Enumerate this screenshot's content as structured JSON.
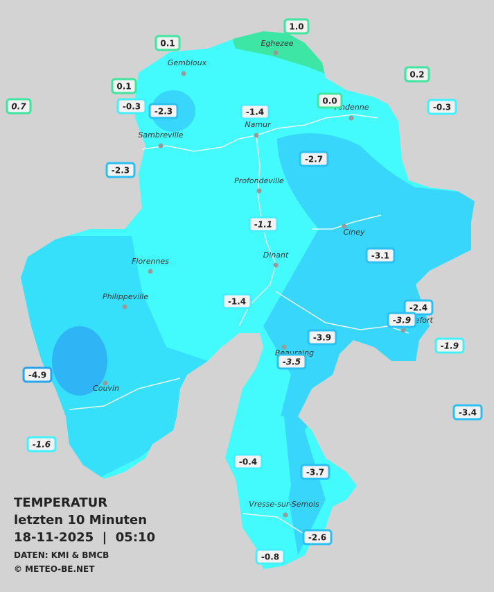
{
  "legend": {
    "title": "TEMPERATUR",
    "period": "letzten 10 Minuten",
    "datetime": "18-11-2025  |  05:10",
    "source": "DATEN: KMI & BMCB",
    "copyright": "© METEO-BE.NET"
  },
  "cities": [
    "Eghezee",
    "Gembloux",
    "Andenne",
    "Namur",
    "Sambreville",
    "Profondeville",
    "Ciney",
    "Dinant",
    "Florennes",
    "Philippeville",
    "Beauraing",
    "Rochefort",
    "Couvin",
    "Vresse-sur-Semois"
  ],
  "stations": [
    {
      "label": "1.0",
      "color": "#3ee6a0"
    },
    {
      "label": "0.1",
      "color": "#3ee6a0"
    },
    {
      "label": "0.2",
      "color": "#3ee6a0"
    },
    {
      "label": "0.1",
      "color": "#3ee6a0"
    },
    {
      "label": "0.0",
      "color": "#3ee6a0"
    },
    {
      "label": "0.7",
      "color": "#3ee6a0",
      "italic": true
    },
    {
      "label": "-0.3",
      "color": "#44f0ff"
    },
    {
      "label": "-2.3",
      "color": "#2cc0f2"
    },
    {
      "label": "-1.4",
      "color": "#44f0ff"
    },
    {
      "label": "-0.3",
      "color": "#44f0ff"
    },
    {
      "label": "-2.7",
      "color": "#2cc0f2"
    },
    {
      "label": "-2.3",
      "color": "#2cc0f2"
    },
    {
      "label": "-1.1",
      "color": "#44f0ff",
      "italic": true
    },
    {
      "label": "-3.1",
      "color": "#2cc0f2"
    },
    {
      "label": "-1.4",
      "color": "#44f0ff"
    },
    {
      "label": "-2.4",
      "color": "#2cc0f2"
    },
    {
      "label": "-3.9",
      "color": "#2cc0f2",
      "italic": true
    },
    {
      "label": "-1.9",
      "color": "#44f0ff",
      "italic": true
    },
    {
      "label": "-3.9",
      "color": "#2cc0f2"
    },
    {
      "label": "-3.5",
      "color": "#2cc0f2",
      "italic": true
    },
    {
      "label": "-4.9",
      "color": "#2aa4ef"
    },
    {
      "label": "-3.4",
      "color": "#2cc0f2"
    },
    {
      "label": "-1.6",
      "color": "#44f0ff",
      "italic": true
    },
    {
      "label": "-0.4",
      "color": "#44f0ff"
    },
    {
      "label": "-3.7",
      "color": "#2cc0f2"
    },
    {
      "label": "-2.6",
      "color": "#2cc0f2"
    },
    {
      "label": "-0.8",
      "color": "#44f0ff"
    }
  ]
}
